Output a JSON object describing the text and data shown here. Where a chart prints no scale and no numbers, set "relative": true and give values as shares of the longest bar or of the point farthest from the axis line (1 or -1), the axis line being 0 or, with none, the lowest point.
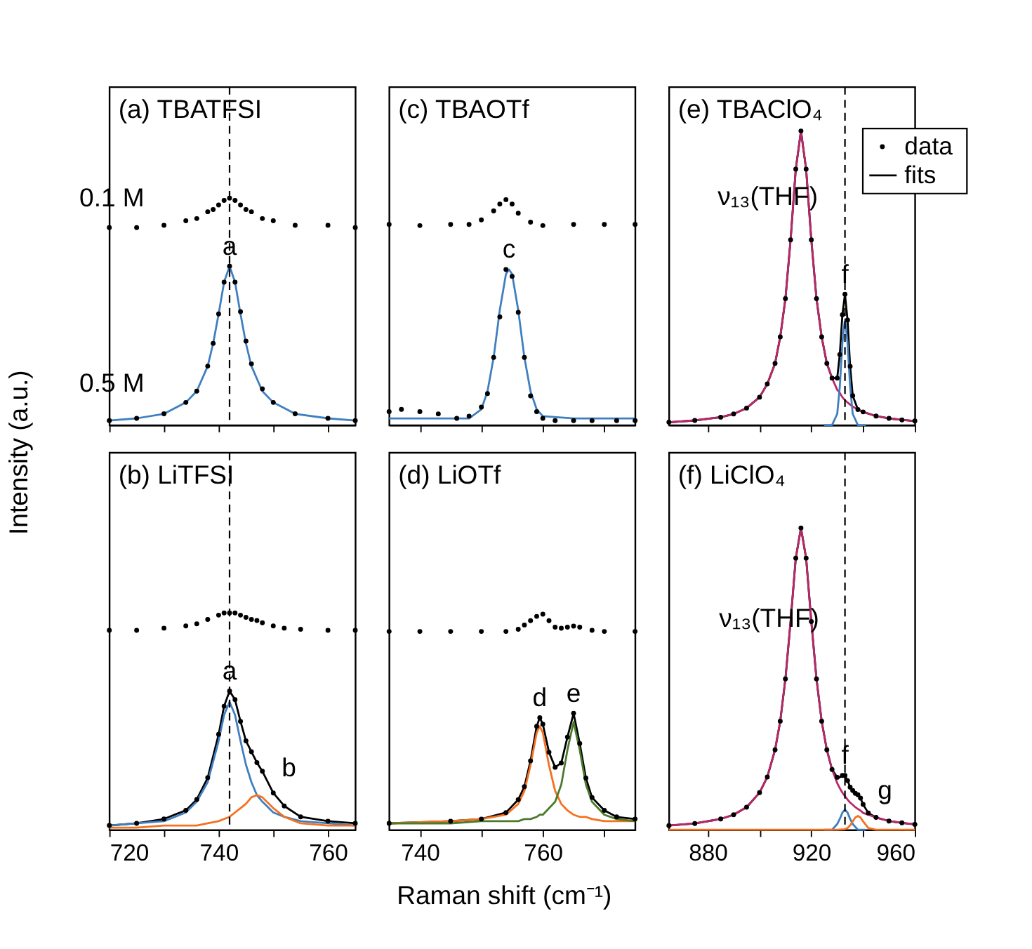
{
  "chart_data": [
    {
      "type": "line",
      "title": "(a) TBATFSI",
      "ylabel": "Intensity (a.u.)",
      "relative": true,
      "xlim": [
        720,
        765
      ],
      "xticks": [
        720,
        {
          "value": 730,
          "label": null
        },
        740,
        {
          "value": 750,
          "label": null
        },
        760
      ],
      "tick_labels": false,
      "x": [
        720,
        725,
        730,
        734,
        736,
        738,
        739,
        740,
        741,
        742,
        743,
        744,
        745,
        746,
        748,
        750,
        754,
        760,
        765
      ],
      "series": [
        {
          "type": "scatter",
          "marker": "circle",
          "color": "#000000",
          "values": [
            0.87,
            0.87,
            0.88,
            0.9,
            0.91,
            0.94,
            0.95,
            0.97,
            0.99,
            1.0,
            0.99,
            0.97,
            0.95,
            0.94,
            0.91,
            0.9,
            0.88,
            0.88,
            0.87
          ]
        },
        {
          "type": "scatter",
          "marker": "circle",
          "color": "#000000",
          "values": [
            0.02,
            0.03,
            0.05,
            0.1,
            0.15,
            0.26,
            0.36,
            0.49,
            0.63,
            0.7,
            0.63,
            0.5,
            0.37,
            0.27,
            0.16,
            0.1,
            0.05,
            0.03,
            0.02
          ]
        },
        {
          "color": "#3f7fbf",
          "values": [
            0.02,
            0.03,
            0.05,
            0.1,
            0.15,
            0.26,
            0.36,
            0.49,
            0.63,
            0.7,
            0.63,
            0.49,
            0.36,
            0.26,
            0.15,
            0.1,
            0.05,
            0.03,
            0.02
          ]
        }
      ],
      "annotations": [
        "0.1 M",
        "0.5 M",
        {
          "text": "a",
          "x": 742,
          "y": 0.7
        }
      ],
      "ref_lines": [
        {
          "axis": "x",
          "value": 742,
          "line_style": "dashed"
        }
      ]
    },
    {
      "type": "line",
      "title": "(c) TBAOTf",
      "relative": true,
      "xlim": [
        735,
        775
      ],
      "xticks": [
        740,
        {
          "value": 750,
          "label": null
        },
        760,
        {
          "value": 770,
          "label": null
        }
      ],
      "tick_labels": false,
      "x": [
        735,
        737,
        740,
        743,
        746,
        748,
        750,
        751,
        752,
        753,
        754,
        755,
        756,
        757,
        758,
        759,
        760,
        762,
        765,
        768,
        772,
        775
      ],
      "series": [
        {
          "type": "scatter",
          "marker": "circle",
          "color": "#000000",
          "x": [
            735,
            740,
            745,
            748,
            750,
            752,
            753,
            754,
            755,
            756,
            758,
            760,
            765,
            770,
            775
          ],
          "values": [
            0.89,
            0.885,
            0.89,
            0.89,
            0.91,
            0.95,
            0.98,
            1.0,
            0.98,
            0.94,
            0.9,
            0.885,
            0.89,
            0.89,
            0.89
          ]
        },
        {
          "type": "scatter",
          "marker": "circle",
          "color": "#000000",
          "values": [
            0.06,
            0.07,
            0.06,
            0.05,
            0.03,
            0.04,
            0.08,
            0.14,
            0.3,
            0.48,
            0.69,
            0.66,
            0.5,
            0.3,
            0.13,
            0.06,
            0.03,
            0.02,
            0.02,
            0.02,
            0.02,
            0.02
          ]
        },
        {
          "color": "#3f7fbf",
          "x": [
            735,
            745,
            748,
            750,
            751,
            752,
            753,
            754,
            754.5,
            755,
            756,
            757,
            758,
            759,
            760,
            765,
            775
          ],
          "values": [
            0.03,
            0.03,
            0.03,
            0.07,
            0.15,
            0.3,
            0.51,
            0.67,
            0.69,
            0.67,
            0.51,
            0.3,
            0.15,
            0.07,
            0.04,
            0.03,
            0.03
          ]
        }
      ],
      "annotations": [
        {
          "text": "c",
          "x": 754.5,
          "y": 0.69
        }
      ]
    },
    {
      "type": "line",
      "title": "(e) TBAClO₄",
      "relative": true,
      "xlim": [
        865,
        960
      ],
      "xticks": [
        880,
        {
          "value": 900,
          "label": null
        },
        920,
        {
          "value": 940,
          "label": null
        },
        960
      ],
      "tick_labels": false,
      "legend": "top right",
      "x": [
        865,
        875,
        885,
        890,
        895,
        900,
        903,
        906,
        908,
        910,
        912,
        914,
        916,
        918,
        920,
        922,
        924,
        926,
        928,
        930,
        931,
        932,
        933,
        934,
        935,
        936,
        938,
        940,
        945,
        950,
        955,
        960
      ],
      "series": [
        {
          "type": "scatter",
          "marker": "circle",
          "name": "data",
          "color": "#000000",
          "values": [
            0.01,
            0.016,
            0.027,
            0.038,
            0.058,
            0.095,
            0.14,
            0.21,
            0.3,
            0.43,
            0.63,
            0.87,
            1.0,
            0.87,
            0.63,
            0.43,
            0.3,
            0.21,
            0.16,
            0.16,
            0.24,
            0.375,
            0.445,
            0.357,
            0.2,
            0.1,
            0.053,
            0.045,
            0.031,
            0.023,
            0.018,
            0.014
          ]
        },
        {
          "name": "fits",
          "color": "#000000",
          "values": [
            0.01,
            0.016,
            0.027,
            0.038,
            0.058,
            0.095,
            0.14,
            0.21,
            0.3,
            0.43,
            0.63,
            0.87,
            1.0,
            0.87,
            0.63,
            0.43,
            0.3,
            0.21,
            0.16,
            0.16,
            0.24,
            0.375,
            0.445,
            0.357,
            0.2,
            0.1,
            0.053,
            0.045,
            0.031,
            0.023,
            0.018,
            0.014
          ]
        },
        {
          "color": "#b8286a",
          "values": [
            0.01,
            0.016,
            0.027,
            0.038,
            0.058,
            0.095,
            0.14,
            0.21,
            0.3,
            0.43,
            0.63,
            0.87,
            1.0,
            0.87,
            0.63,
            0.43,
            0.3,
            0.21,
            0.16,
            0.12,
            0.11,
            0.095,
            0.085,
            0.077,
            0.07,
            0.063,
            0.053,
            0.045,
            0.031,
            0.023,
            0.018,
            0.014
          ]
        },
        {
          "color": "#3f7fbf",
          "x": [
            925,
            928,
            930,
            931,
            932,
            933,
            934,
            935,
            936,
            938,
            941
          ],
          "values": [
            0,
            0,
            0.038,
            0.13,
            0.28,
            0.36,
            0.28,
            0.13,
            0.038,
            0,
            0
          ]
        }
      ],
      "annotations": [
        "ν₁₃(THF)",
        {
          "text": "f",
          "x": 933,
          "y": 0.445
        }
      ],
      "ref_lines": [
        {
          "axis": "x",
          "value": 933,
          "line_style": "dashed"
        }
      ]
    },
    {
      "type": "line",
      "title": "(b) LiTFSI",
      "relative": true,
      "xlim": [
        720,
        765
      ],
      "xticks": [
        720,
        {
          "value": 730,
          "label": null
        },
        740,
        {
          "value": 750,
          "label": null
        },
        760
      ],
      "tick_labels": "x",
      "x": [
        720,
        725,
        730,
        734,
        736,
        738,
        740,
        741,
        742,
        743,
        744,
        745,
        746,
        747,
        748,
        750,
        752,
        755,
        760,
        765
      ],
      "series": [
        {
          "type": "scatter",
          "marker": "circle",
          "color": "#000000",
          "values": [
            0.92,
            0.92,
            0.93,
            0.94,
            0.95,
            0.97,
            0.99,
            1.0,
            1.0,
            1.0,
            0.99,
            0.98,
            0.97,
            0.965,
            0.955,
            0.94,
            0.93,
            0.925,
            0.92,
            0.92
          ]
        },
        {
          "type": "scatter",
          "marker": "circle",
          "color": "#000000",
          "values": [
            0.02,
            0.03,
            0.05,
            0.09,
            0.14,
            0.24,
            0.44,
            0.57,
            0.64,
            0.6,
            0.5,
            0.41,
            0.36,
            0.31,
            0.27,
            0.17,
            0.11,
            0.06,
            0.04,
            0.03
          ]
        },
        {
          "color": "#000000",
          "values": [
            0.02,
            0.03,
            0.05,
            0.09,
            0.14,
            0.24,
            0.44,
            0.57,
            0.64,
            0.6,
            0.5,
            0.41,
            0.36,
            0.31,
            0.27,
            0.17,
            0.11,
            0.06,
            0.04,
            0.03
          ]
        },
        {
          "color": "#3f7fbf",
          "values": [
            0.02,
            0.03,
            0.04,
            0.08,
            0.13,
            0.22,
            0.41,
            0.53,
            0.59,
            0.53,
            0.41,
            0.3,
            0.22,
            0.16,
            0.13,
            0.08,
            0.06,
            0.04,
            0.03,
            0.02
          ]
        },
        {
          "color": "#f5701f",
          "values": [
            0.01,
            0.01,
            0.02,
            0.02,
            0.02,
            0.03,
            0.04,
            0.05,
            0.06,
            0.08,
            0.1,
            0.12,
            0.15,
            0.16,
            0.15,
            0.1,
            0.06,
            0.03,
            0.02,
            0.02
          ]
        }
      ],
      "annotations": [
        {
          "text": "a",
          "x": 742,
          "y": 0.64
        },
        "b"
      ],
      "ref_lines": [
        {
          "axis": "x",
          "value": 742,
          "line_style": "dashed"
        }
      ]
    },
    {
      "type": "line",
      "title": "(d) LiOTf",
      "xlabel": "Raman shift (cm⁻¹)",
      "relative": true,
      "xlim": [
        735,
        775
      ],
      "xticks": [
        740,
        {
          "value": 750,
          "label": null
        },
        760,
        {
          "value": 770,
          "label": null
        }
      ],
      "tick_labels": "x",
      "x": [
        735,
        745,
        750,
        754,
        756,
        757,
        758,
        759,
        759.5,
        760,
        761,
        762,
        763,
        764,
        765,
        766,
        767,
        768,
        770,
        772,
        775
      ],
      "series": [
        {
          "type": "scatter",
          "marker": "circle",
          "color": "#000000",
          "x": [
            735,
            740,
            745,
            750,
            754,
            756,
            757,
            758,
            759,
            760,
            761,
            762,
            763,
            764,
            765,
            766,
            768,
            770,
            775
          ],
          "values": [
            0.92,
            0.92,
            0.92,
            0.92,
            0.92,
            0.93,
            0.95,
            0.97,
            0.99,
            1.0,
            0.97,
            0.94,
            0.935,
            0.94,
            0.945,
            0.94,
            0.925,
            0.92,
            0.92
          ]
        },
        {
          "type": "scatter",
          "marker": "circle",
          "color": "#000000",
          "values": [
            0.03,
            0.04,
            0.05,
            0.08,
            0.14,
            0.2,
            0.32,
            0.48,
            0.52,
            0.49,
            0.36,
            0.29,
            0.31,
            0.43,
            0.54,
            0.4,
            0.24,
            0.15,
            0.09,
            0.06,
            0.05
          ]
        },
        {
          "color": "#000000",
          "values": [
            0.03,
            0.04,
            0.05,
            0.08,
            0.14,
            0.2,
            0.32,
            0.48,
            0.52,
            0.49,
            0.36,
            0.29,
            0.31,
            0.43,
            0.54,
            0.4,
            0.24,
            0.15,
            0.09,
            0.06,
            0.05
          ]
        },
        {
          "color": "#f5701f",
          "values": [
            0.03,
            0.04,
            0.05,
            0.07,
            0.12,
            0.18,
            0.3,
            0.45,
            0.48,
            0.45,
            0.3,
            0.18,
            0.12,
            0.09,
            0.07,
            0.06,
            0.06,
            0.05,
            0.04,
            0.04,
            0.04
          ]
        },
        {
          "color": "#4b7a2b",
          "values": [
            0.03,
            0.03,
            0.04,
            0.04,
            0.04,
            0.05,
            0.05,
            0.06,
            0.07,
            0.07,
            0.1,
            0.13,
            0.21,
            0.37,
            0.5,
            0.37,
            0.21,
            0.13,
            0.07,
            0.05,
            0.04
          ]
        }
      ],
      "annotations": [
        {
          "text": "d",
          "x": 759.5,
          "y": 0.52
        },
        {
          "text": "e",
          "x": 765,
          "y": 0.54
        }
      ]
    },
    {
      "type": "line",
      "title": "(f) LiClO₄",
      "relative": true,
      "xlim": [
        865,
        960
      ],
      "xticks": [
        880,
        {
          "value": 900,
          "label": null
        },
        920,
        {
          "value": 940,
          "label": null
        },
        960
      ],
      "tick_labels": "x",
      "x": [
        865,
        875,
        885,
        890,
        895,
        900,
        903,
        906,
        908,
        910,
        912,
        914,
        916,
        918,
        920,
        922,
        924,
        926,
        928,
        930,
        931,
        932,
        933,
        934,
        935,
        936,
        937,
        938,
        939,
        940,
        942,
        945,
        950,
        955,
        960
      ],
      "series": [
        {
          "type": "scatter",
          "marker": "circle",
          "color": "#000000",
          "values": [
            0.014,
            0.021,
            0.036,
            0.05,
            0.075,
            0.123,
            0.175,
            0.265,
            0.36,
            0.5,
            null,
            0.9,
            1.0,
            0.9,
            0.69,
            0.5,
            0.36,
            0.265,
            0.2,
            0.174,
            null,
            0.18,
            0.18,
            0.163,
            0.141,
            0.13,
            0.121,
            0.116,
            0.105,
            0.084,
            0.056,
            0.041,
            0.029,
            0.023,
            0.018
          ]
        },
        {
          "color": "#000000",
          "values": [
            0.014,
            0.021,
            0.036,
            0.05,
            0.075,
            0.123,
            0.175,
            0.265,
            0.36,
            0.5,
            0.69,
            0.9,
            1.0,
            0.9,
            0.69,
            0.5,
            0.36,
            0.265,
            0.2,
            0.174,
            0.174,
            0.18,
            0.18,
            0.163,
            0.141,
            0.13,
            0.121,
            0.116,
            0.105,
            0.084,
            0.056,
            0.041,
            0.029,
            0.023,
            0.018
          ]
        },
        {
          "color": "#b8286a",
          "values": [
            0.014,
            0.021,
            0.036,
            0.05,
            0.075,
            0.123,
            0.175,
            0.265,
            0.36,
            0.5,
            0.69,
            0.9,
            1.0,
            0.9,
            0.69,
            0.5,
            0.36,
            0.265,
            0.2,
            0.155,
            0.138,
            0.123,
            0.111,
            0.1,
            0.09,
            0.083,
            0.075,
            0.069,
            0.064,
            0.056,
            0.05,
            0.041,
            0.029,
            0.023,
            0.018
          ]
        },
        {
          "color": "#3f7fbf",
          "x": [
            925,
            928,
            930,
            931,
            932,
            933,
            934,
            935,
            936,
            938,
            941
          ],
          "values": [
            0,
            0,
            0.019,
            0.036,
            0.057,
            0.067,
            0.057,
            0.036,
            0.019,
            0,
            0
          ]
        },
        {
          "color": "#f5701f",
          "x": [
            865,
            930,
            933,
            934,
            935,
            936,
            937,
            938,
            939,
            940,
            942,
            945,
            960
          ],
          "values": [
            0,
            0,
            0.002,
            0.006,
            0.015,
            0.028,
            0.041,
            0.046,
            0.041,
            0.028,
            0.006,
            0,
            0
          ]
        }
      ],
      "annotations": [
        "ν₁₃(THF)",
        {
          "text": "f",
          "x": 933,
          "y": 0.18
        },
        "g"
      ],
      "ref_lines": [
        {
          "axis": "x",
          "value": 933,
          "line_style": "dashed"
        }
      ]
    }
  ]
}
